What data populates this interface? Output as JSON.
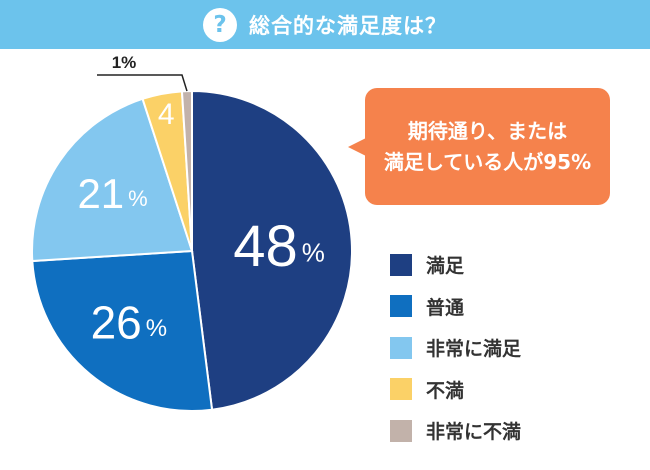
{
  "header": {
    "icon_glyph": "?",
    "title": "総合的な満足度は？"
  },
  "callout": {
    "line1": "期待通り、または",
    "line2": "満足している人が95%"
  },
  "chart_data": {
    "type": "pie",
    "title": "総合的な満足度は？",
    "slices": [
      {
        "label": "満足",
        "value": 48,
        "color": "#1e3f82",
        "display": "48",
        "suffix": "%"
      },
      {
        "label": "普通",
        "value": 26,
        "color": "#0f6fc0",
        "display": "26",
        "suffix": "%"
      },
      {
        "label": "非常に満足",
        "value": 21,
        "color": "#83c7ef",
        "display": "21",
        "suffix": "%"
      },
      {
        "label": "不満",
        "value": 4,
        "color": "#fbd167",
        "display": "4",
        "suffix": ""
      },
      {
        "label": "非常に不満",
        "value": 1,
        "color": "#c2b2aa",
        "display": "1%",
        "suffix": ""
      }
    ],
    "start": "12 o'clock",
    "direction": "clockwise"
  }
}
